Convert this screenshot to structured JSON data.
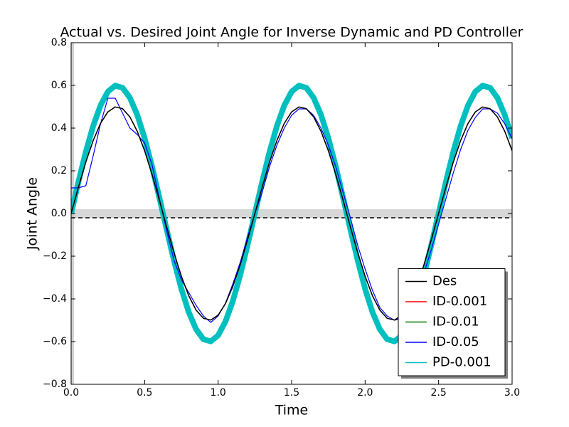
{
  "chart_data": {
    "type": "line",
    "title": "Actual vs. Desired Joint Angle for Inverse Dynamic and PD Controller",
    "x_label": "Time",
    "y_label": "Joint Angle",
    "x": [
      0,
      0.05,
      0.1,
      0.15,
      0.2,
      0.25,
      0.3,
      0.35,
      0.4,
      0.45,
      0.5,
      0.55,
      0.6,
      0.65,
      0.7,
      0.75,
      0.8,
      0.85,
      0.9,
      0.95,
      1.0,
      1.05,
      1.1,
      1.15,
      1.2,
      1.25,
      1.3,
      1.35,
      1.4,
      1.45,
      1.5,
      1.55,
      1.6,
      1.65,
      1.7,
      1.75,
      1.8,
      1.85,
      1.9,
      1.95,
      2.0,
      2.05,
      2.1,
      2.15,
      2.2,
      2.25,
      2.3,
      2.35,
      2.4,
      2.45,
      2.5,
      2.55,
      2.6,
      2.65,
      2.7,
      2.75,
      2.8,
      2.85,
      2.9,
      2.95,
      3.0
    ],
    "series": [
      {
        "name": "Des",
        "color": "#000000",
        "width": 1.5,
        "values": [
          0,
          0.124,
          0.241,
          0.342,
          0.422,
          0.476,
          0.499,
          0.491,
          0.452,
          0.385,
          0.294,
          0.184,
          0.063,
          -0.063,
          -0.184,
          -0.294,
          -0.385,
          -0.452,
          -0.491,
          -0.499,
          -0.476,
          -0.422,
          -0.342,
          -0.241,
          -0.124,
          0,
          0.124,
          0.241,
          0.342,
          0.422,
          0.476,
          0.499,
          0.491,
          0.452,
          0.385,
          0.294,
          0.184,
          0.063,
          -0.063,
          -0.184,
          -0.294,
          -0.385,
          -0.452,
          -0.491,
          -0.499,
          -0.476,
          -0.422,
          -0.342,
          -0.241,
          -0.124,
          0,
          0.124,
          0.241,
          0.342,
          0.422,
          0.476,
          0.499,
          0.491,
          0.452,
          0.385,
          0.294
        ]
      },
      {
        "name": "ID-0.001",
        "color": "#ff0000",
        "width": 1.2,
        "values": [
          0,
          0.124,
          0.241,
          0.342,
          0.422,
          0.476,
          0.499,
          0.491,
          0.452,
          0.385,
          0.294,
          0.184,
          0.063,
          -0.063,
          -0.184,
          -0.294,
          -0.385,
          -0.452,
          -0.491,
          -0.499,
          -0.476,
          -0.422,
          -0.342,
          -0.241,
          -0.124,
          0,
          0.124,
          0.241,
          0.342,
          0.422,
          0.476,
          0.499,
          0.491,
          0.452,
          0.385,
          0.294,
          0.184,
          0.063,
          -0.063,
          -0.184,
          -0.294,
          -0.385,
          -0.452,
          -0.491,
          -0.499,
          -0.476,
          -0.422,
          -0.342,
          -0.241,
          -0.124,
          0,
          0.124,
          0.241,
          0.342,
          0.422,
          0.476,
          0.499,
          0.491,
          0.452,
          0.385,
          0.294
        ]
      },
      {
        "name": "ID-0.01",
        "color": "#008000",
        "width": 1.2,
        "values": [
          0,
          0.124,
          0.241,
          0.342,
          0.422,
          0.476,
          0.499,
          0.491,
          0.452,
          0.385,
          0.294,
          0.184,
          0.063,
          -0.063,
          -0.184,
          -0.294,
          -0.385,
          -0.452,
          -0.491,
          -0.499,
          -0.476,
          -0.422,
          -0.342,
          -0.241,
          -0.124,
          0,
          0.124,
          0.241,
          0.342,
          0.422,
          0.476,
          0.499,
          0.491,
          0.452,
          0.385,
          0.294,
          0.184,
          0.063,
          -0.063,
          -0.184,
          -0.294,
          -0.385,
          -0.452,
          -0.491,
          -0.499,
          -0.476,
          -0.422,
          -0.342,
          -0.241,
          -0.124,
          0,
          0.124,
          0.241,
          0.342,
          0.422,
          0.476,
          0.499,
          0.491,
          0.452,
          0.385,
          0.294
        ]
      },
      {
        "name": "ID-0.05",
        "color": "#0000ff",
        "width": 1.2,
        "values": [
          0.12,
          0.12,
          0.13,
          0.27,
          0.42,
          0.54,
          0.54,
          0.47,
          0.4,
          0.37,
          0.33,
          0.23,
          0.07,
          -0.08,
          -0.22,
          -0.31,
          -0.37,
          -0.43,
          -0.48,
          -0.51,
          -0.48,
          -0.42,
          -0.33,
          -0.23,
          -0.11,
          0,
          0.1,
          0.22,
          0.32,
          0.4,
          0.46,
          0.49,
          0.49,
          0.46,
          0.4,
          0.32,
          0.22,
          0.1,
          -0.02,
          -0.15,
          -0.26,
          -0.36,
          -0.44,
          -0.48,
          -0.5,
          -0.49,
          -0.44,
          -0.37,
          -0.28,
          -0.17,
          -0.05,
          0.07,
          0.19,
          0.3,
          0.39,
          0.45,
          0.49,
          0.49,
          0.47,
          0.42,
          0.35
        ]
      },
      {
        "name": "PD-0.001",
        "color": "#00bfbf",
        "width": 8,
        "values": [
          0,
          0.149,
          0.289,
          0.41,
          0.506,
          0.571,
          0.599,
          0.589,
          0.542,
          0.462,
          0.353,
          0.221,
          0.075,
          -0.075,
          -0.221,
          -0.353,
          -0.462,
          -0.542,
          -0.589,
          -0.599,
          -0.571,
          -0.506,
          -0.41,
          -0.289,
          -0.149,
          0,
          0.149,
          0.289,
          0.41,
          0.506,
          0.571,
          0.599,
          0.589,
          0.542,
          0.462,
          0.353,
          0.221,
          0.075,
          -0.075,
          -0.221,
          -0.353,
          -0.462,
          -0.542,
          -0.589,
          -0.599,
          -0.571,
          -0.506,
          -0.41,
          -0.289,
          -0.149,
          0,
          0.149,
          0.289,
          0.41,
          0.506,
          0.571,
          0.599,
          0.589,
          0.542,
          0.462,
          0.353
        ]
      }
    ],
    "xlim": [
      0,
      3
    ],
    "ylim": [
      -0.8,
      0.8
    ],
    "xticks": [
      {
        "value": 0,
        "label": "0.0"
      },
      0.5,
      {
        "value": 1,
        "label": "1.0"
      },
      1.5,
      {
        "value": 2,
        "label": "2.0"
      },
      2.5,
      {
        "value": 3,
        "label": "3.0"
      }
    ],
    "yticks": [
      {
        "value": -0.8,
        "label": "−0.8"
      },
      {
        "value": -0.6,
        "label": "−0.6"
      },
      {
        "value": -0.4,
        "label": "−0.4"
      },
      {
        "value": -0.2,
        "label": "−0.2"
      },
      {
        "value": 0,
        "label": "0.0"
      },
      0.2,
      0.4,
      0.6,
      0.8
    ],
    "hspan": [
      -0.02,
      0.02
    ],
    "hline": -0.02,
    "vspan": [
      0,
      0.02
    ],
    "legend": "lower right",
    "grid": false
  }
}
